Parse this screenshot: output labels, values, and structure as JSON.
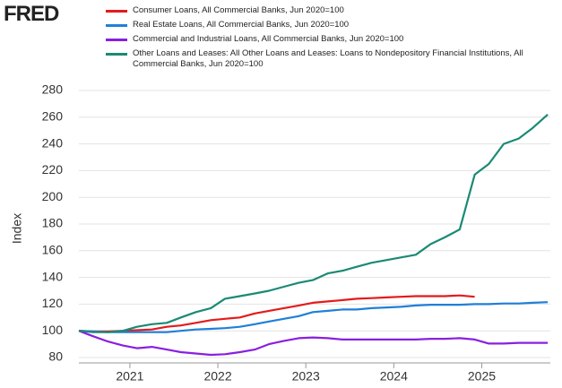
{
  "logo": "FRED",
  "chart_data": {
    "type": "line",
    "y_label": "Index",
    "x": [
      2020.42,
      2020.58,
      2020.75,
      2020.92,
      2021.08,
      2021.25,
      2021.42,
      2021.58,
      2021.75,
      2021.92,
      2022.08,
      2022.25,
      2022.42,
      2022.58,
      2022.75,
      2022.92,
      2023.08,
      2023.25,
      2023.42,
      2023.58,
      2023.75,
      2023.92,
      2024.08,
      2024.25,
      2024.42,
      2024.58,
      2024.75,
      2024.92,
      2025.08,
      2025.25,
      2025.42,
      2025.58,
      2025.75
    ],
    "series": [
      {
        "name": "Consumer Loans, All Commercial Banks, Jun 2020=100",
        "color": "#e41a1c",
        "values": [
          100,
          99.5,
          99.5,
          100,
          100.5,
          101,
          103,
          104,
          106,
          108,
          109,
          110,
          113,
          115,
          117,
          119,
          121,
          122,
          123,
          124,
          124.5,
          125,
          125.5,
          126,
          126,
          126,
          126.5,
          125.5,
          null,
          null,
          null,
          null,
          null
        ]
      },
      {
        "name": "Real Estate Loans, All Commercial Banks, Jun 2020=100",
        "color": "#1f7fd8",
        "values": [
          100,
          99.5,
          99,
          99,
          99,
          99,
          99,
          100,
          101,
          101.5,
          102,
          103,
          105,
          107,
          109,
          111,
          114,
          115,
          116,
          116,
          117,
          117.5,
          118,
          119,
          119.5,
          119.5,
          119.5,
          120,
          120,
          120.5,
          120.5,
          121,
          121.5
        ]
      },
      {
        "name": "Commercial and Industrial Loans, All Commercial Banks, Jun 2020=100",
        "color": "#8a1fe0",
        "values": [
          100,
          96,
          92,
          89,
          87,
          88,
          86,
          84,
          83,
          82,
          82.5,
          84,
          86,
          90,
          92.5,
          94.5,
          95,
          94.5,
          93.5,
          93.5,
          93.5,
          93.5,
          93.5,
          93.5,
          94,
          94,
          94.5,
          93.5,
          90.5,
          90.5,
          91,
          91,
          91
        ]
      },
      {
        "name": "Other Loans and Leases: All Other Loans and Leases: Loans to Nondepository Financial Institutions, All Commercial Banks, Jun 2020=100",
        "color": "#1a8a74",
        "values": [
          100,
          99,
          99,
          100,
          103,
          105,
          106,
          110,
          114,
          117,
          124,
          126,
          128,
          130,
          133,
          136,
          138,
          143,
          145,
          148,
          151,
          153,
          155,
          157,
          165,
          170,
          176,
          217,
          225,
          240,
          244,
          252,
          262
        ]
      }
    ],
    "xlim": [
      2020.42,
      2025.78
    ],
    "xticks": [
      2021,
      2022,
      2023,
      2024,
      2025
    ],
    "ylim": [
      80,
      280
    ],
    "yticks": [
      80,
      100,
      120,
      140,
      160,
      180,
      200,
      220,
      240,
      260,
      280
    ],
    "grid": true
  }
}
